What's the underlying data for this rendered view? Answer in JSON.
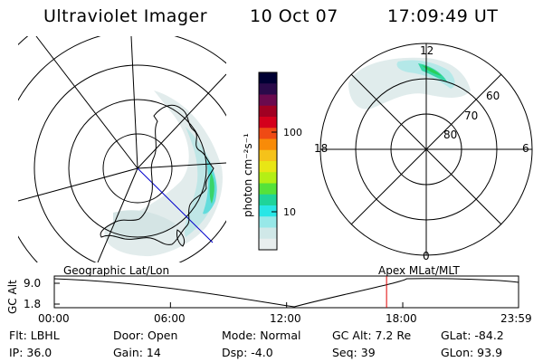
{
  "header": {
    "instrument": "Ultraviolet Imager",
    "date": "10 Oct 07",
    "time": "17:09:49 UT"
  },
  "colorbar": {
    "label": "photon cm⁻²s⁻¹",
    "ticks": [
      "100",
      "10"
    ],
    "colors": [
      "#000033",
      "#2a0a4a",
      "#6a0a4e",
      "#a00022",
      "#d4001c",
      "#ef4a14",
      "#f88b08",
      "#f5c21a",
      "#e8e615",
      "#b4ef15",
      "#55e23a",
      "#1fd49a",
      "#29e6e6",
      "#97e8e8",
      "#d0e8e8",
      "#e8eeee"
    ]
  },
  "geo_map": {
    "label": "Geographic Lat/Lon"
  },
  "mag_map": {
    "label": "Apex MLat/MLT",
    "mlt_labels": {
      "top": "12",
      "left": "18",
      "right": "6",
      "bottom": "0"
    },
    "mlat_labels": [
      "60",
      "70",
      "80"
    ]
  },
  "altitude_plot": {
    "ylabel": "GC Alt",
    "y_ticks": [
      "9.0",
      "1.8"
    ],
    "x_ticks": [
      "00:00",
      "06:00",
      "12:00",
      "18:00",
      "23:59"
    ],
    "x_hours": [
      0,
      6,
      12,
      18,
      23.983
    ],
    "current_time_hours": 17.164,
    "min_time_hours": 12.4,
    "accent_color": "#e00000"
  },
  "info": {
    "filter": "Flt: LBHL",
    "door": "Door: Open",
    "mode": "Mode: Normal",
    "gc_alt": "GC Alt: 7.2 Re",
    "glat": "GLat: -84.2",
    "ip": "IP: 36.0",
    "gain": "Gain: 14",
    "dsp": "Dsp:   -4.0",
    "seq": "Seq: 39",
    "glon": "GLon:  93.9"
  }
}
